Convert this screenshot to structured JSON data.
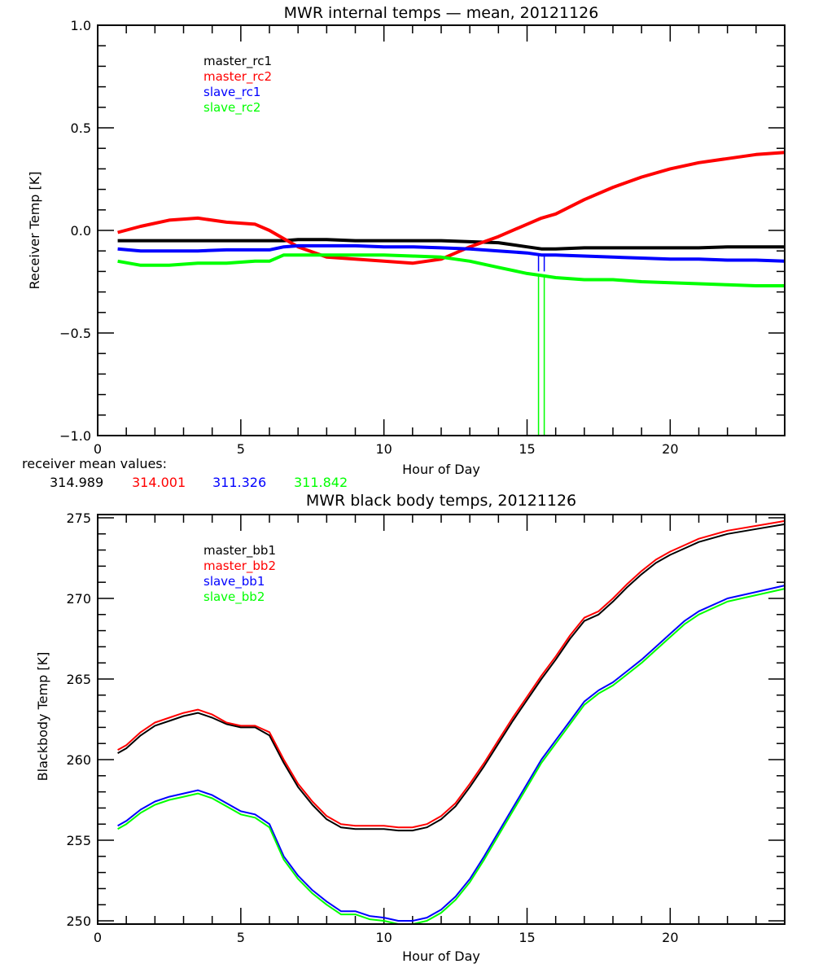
{
  "chart_data": [
    {
      "type": "line",
      "title": "MWR internal temps — mean, 20121126",
      "xlabel": "Hour of Day",
      "ylabel": "Receiver Temp [K]",
      "xlim": [
        0,
        24
      ],
      "ylim": [
        -1.0,
        1.0
      ],
      "xticks": [
        "0",
        "5",
        "10",
        "15",
        "20"
      ],
      "yticks": [
        "1.0",
        "0.5",
        "0.0",
        "-0.5",
        "-1.0"
      ],
      "legend_position": "top-left",
      "x": [
        0.7,
        1.5,
        2.5,
        3.5,
        4.5,
        5.5,
        6.0,
        6.5,
        7.0,
        8.0,
        9.0,
        10.0,
        11.0,
        12.0,
        13.0,
        14.0,
        15.0,
        15.5,
        16.0,
        17.0,
        18.0,
        19.0,
        20.0,
        21.0,
        22.0,
        23.0,
        24.0
      ],
      "series": [
        {
          "name": "master_rc1",
          "color": "#000000",
          "values": [
            -0.05,
            -0.05,
            -0.05,
            -0.05,
            -0.05,
            -0.05,
            -0.05,
            -0.05,
            -0.045,
            -0.045,
            -0.05,
            -0.05,
            -0.05,
            -0.05,
            -0.055,
            -0.06,
            -0.08,
            -0.09,
            -0.09,
            -0.085,
            -0.085,
            -0.085,
            -0.085,
            -0.085,
            -0.08,
            -0.08,
            -0.08
          ]
        },
        {
          "name": "master_rc2",
          "color": "#ff0000",
          "values": [
            -0.01,
            0.02,
            0.05,
            0.06,
            0.04,
            0.03,
            0.0,
            -0.04,
            -0.08,
            -0.13,
            -0.14,
            -0.15,
            -0.16,
            -0.14,
            -0.08,
            -0.03,
            0.03,
            0.06,
            0.08,
            0.15,
            0.21,
            0.26,
            0.3,
            0.33,
            0.35,
            0.37,
            0.38
          ]
        },
        {
          "name": "slave_rc1",
          "color": "#0000ff",
          "values": [
            -0.09,
            -0.1,
            -0.1,
            -0.1,
            -0.095,
            -0.095,
            -0.095,
            -0.08,
            -0.075,
            -0.075,
            -0.075,
            -0.08,
            -0.08,
            -0.085,
            -0.09,
            -0.1,
            -0.11,
            -0.12,
            -0.12,
            -0.125,
            -0.13,
            -0.135,
            -0.14,
            -0.14,
            -0.145,
            -0.145,
            -0.15
          ]
        },
        {
          "name": "slave_rc2",
          "color": "#00ff00",
          "values": [
            -0.15,
            -0.17,
            -0.17,
            -0.16,
            -0.16,
            -0.15,
            -0.15,
            -0.12,
            -0.12,
            -0.12,
            -0.12,
            -0.12,
            -0.125,
            -0.13,
            -0.15,
            -0.18,
            -0.21,
            -0.22,
            -0.23,
            -0.24,
            -0.24,
            -0.25,
            -0.255,
            -0.26,
            -0.265,
            -0.27,
            -0.27
          ]
        }
      ],
      "annotations": [
        {
          "label": "receiver mean values:"
        },
        {
          "series": "master_rc1",
          "value": "314.989",
          "color": "#000000"
        },
        {
          "series": "master_rc2",
          "value": "314.001",
          "color": "#ff0000"
        },
        {
          "series": "slave_rc1",
          "value": "311.326",
          "color": "#0000ff"
        },
        {
          "series": "slave_rc2",
          "value": "311.842",
          "color": "#00ff00"
        }
      ],
      "spikes": [
        {
          "x": 15.4,
          "series": "slave_rc2",
          "to": -1.0
        },
        {
          "x": 15.6,
          "series": "slave_rc2",
          "to": -1.0
        },
        {
          "x": 15.4,
          "series": "slave_rc1",
          "to": -0.2
        },
        {
          "x": 15.6,
          "series": "slave_rc1",
          "to": -0.2
        }
      ]
    },
    {
      "type": "line",
      "title": "MWR black body temps, 20121126",
      "xlabel": "Hour of Day",
      "ylabel": "Blackbody Temp [K]",
      "xlim": [
        0,
        24
      ],
      "ylim": [
        249.8,
        275.2
      ],
      "xticks": [
        "0",
        "5",
        "10",
        "15",
        "20"
      ],
      "yticks": [
        "275",
        "270",
        "265",
        "260",
        "255",
        "250"
      ],
      "legend_position": "top-left",
      "x": [
        0.7,
        1.0,
        1.5,
        2.0,
        2.5,
        3.0,
        3.5,
        4.0,
        4.5,
        5.0,
        5.5,
        6.0,
        6.5,
        7.0,
        7.5,
        8.0,
        8.5,
        9.0,
        9.5,
        10.0,
        10.5,
        11.0,
        11.5,
        12.0,
        12.5,
        13.0,
        13.5,
        14.0,
        14.5,
        15.0,
        15.5,
        16.0,
        16.5,
        17.0,
        17.5,
        18.0,
        18.5,
        19.0,
        19.5,
        20.0,
        20.5,
        21.0,
        22.0,
        23.0,
        24.0
      ],
      "series": [
        {
          "name": "master_bb1",
          "color": "#000000",
          "values": [
            260.4,
            260.7,
            261.5,
            262.1,
            262.4,
            262.7,
            262.9,
            262.6,
            262.2,
            262.0,
            262.0,
            261.5,
            259.8,
            258.3,
            257.2,
            256.3,
            255.8,
            255.7,
            255.7,
            255.7,
            255.6,
            255.6,
            255.8,
            256.3,
            257.1,
            258.3,
            259.6,
            261.0,
            262.4,
            263.7,
            265.0,
            266.2,
            267.5,
            268.6,
            269.0,
            269.8,
            270.7,
            271.5,
            272.2,
            272.7,
            273.1,
            273.5,
            274.0,
            274.3,
            274.6
          ]
        },
        {
          "name": "master_bb2",
          "color": "#ff0000",
          "values": [
            260.6,
            260.9,
            261.7,
            262.3,
            262.6,
            262.9,
            263.1,
            262.8,
            262.3,
            262.1,
            262.1,
            261.7,
            260.0,
            258.5,
            257.4,
            256.5,
            256.0,
            255.9,
            255.9,
            255.9,
            255.8,
            255.8,
            256.0,
            256.5,
            257.3,
            258.5,
            259.8,
            261.2,
            262.6,
            263.9,
            265.2,
            266.4,
            267.7,
            268.8,
            269.2,
            270.0,
            270.9,
            271.7,
            272.4,
            272.9,
            273.3,
            273.7,
            274.2,
            274.5,
            274.8
          ]
        },
        {
          "name": "slave_bb1",
          "color": "#0000ff",
          "values": [
            255.9,
            256.2,
            256.9,
            257.4,
            257.7,
            257.9,
            258.1,
            257.8,
            257.3,
            256.8,
            256.6,
            256.0,
            254.0,
            252.8,
            251.9,
            251.2,
            250.6,
            250.6,
            250.3,
            250.2,
            250.0,
            250.0,
            250.2,
            250.7,
            251.5,
            252.6,
            254.0,
            255.5,
            257.0,
            258.5,
            260.0,
            261.2,
            262.4,
            263.6,
            264.3,
            264.8,
            265.5,
            266.2,
            267.0,
            267.8,
            268.6,
            269.2,
            270.0,
            270.4,
            270.8
          ]
        },
        {
          "name": "slave_bb2",
          "color": "#00ff00",
          "values": [
            255.7,
            256.0,
            256.7,
            257.2,
            257.5,
            257.7,
            257.9,
            257.6,
            257.1,
            256.6,
            256.4,
            255.8,
            253.8,
            252.6,
            251.7,
            251.0,
            250.4,
            250.4,
            250.1,
            250.0,
            249.8,
            249.8,
            250.0,
            250.5,
            251.3,
            252.4,
            253.8,
            255.3,
            256.8,
            258.3,
            259.8,
            261.0,
            262.2,
            263.4,
            264.1,
            264.6,
            265.3,
            266.0,
            266.8,
            267.6,
            268.4,
            269.0,
            269.8,
            270.2,
            270.6
          ]
        }
      ]
    }
  ]
}
